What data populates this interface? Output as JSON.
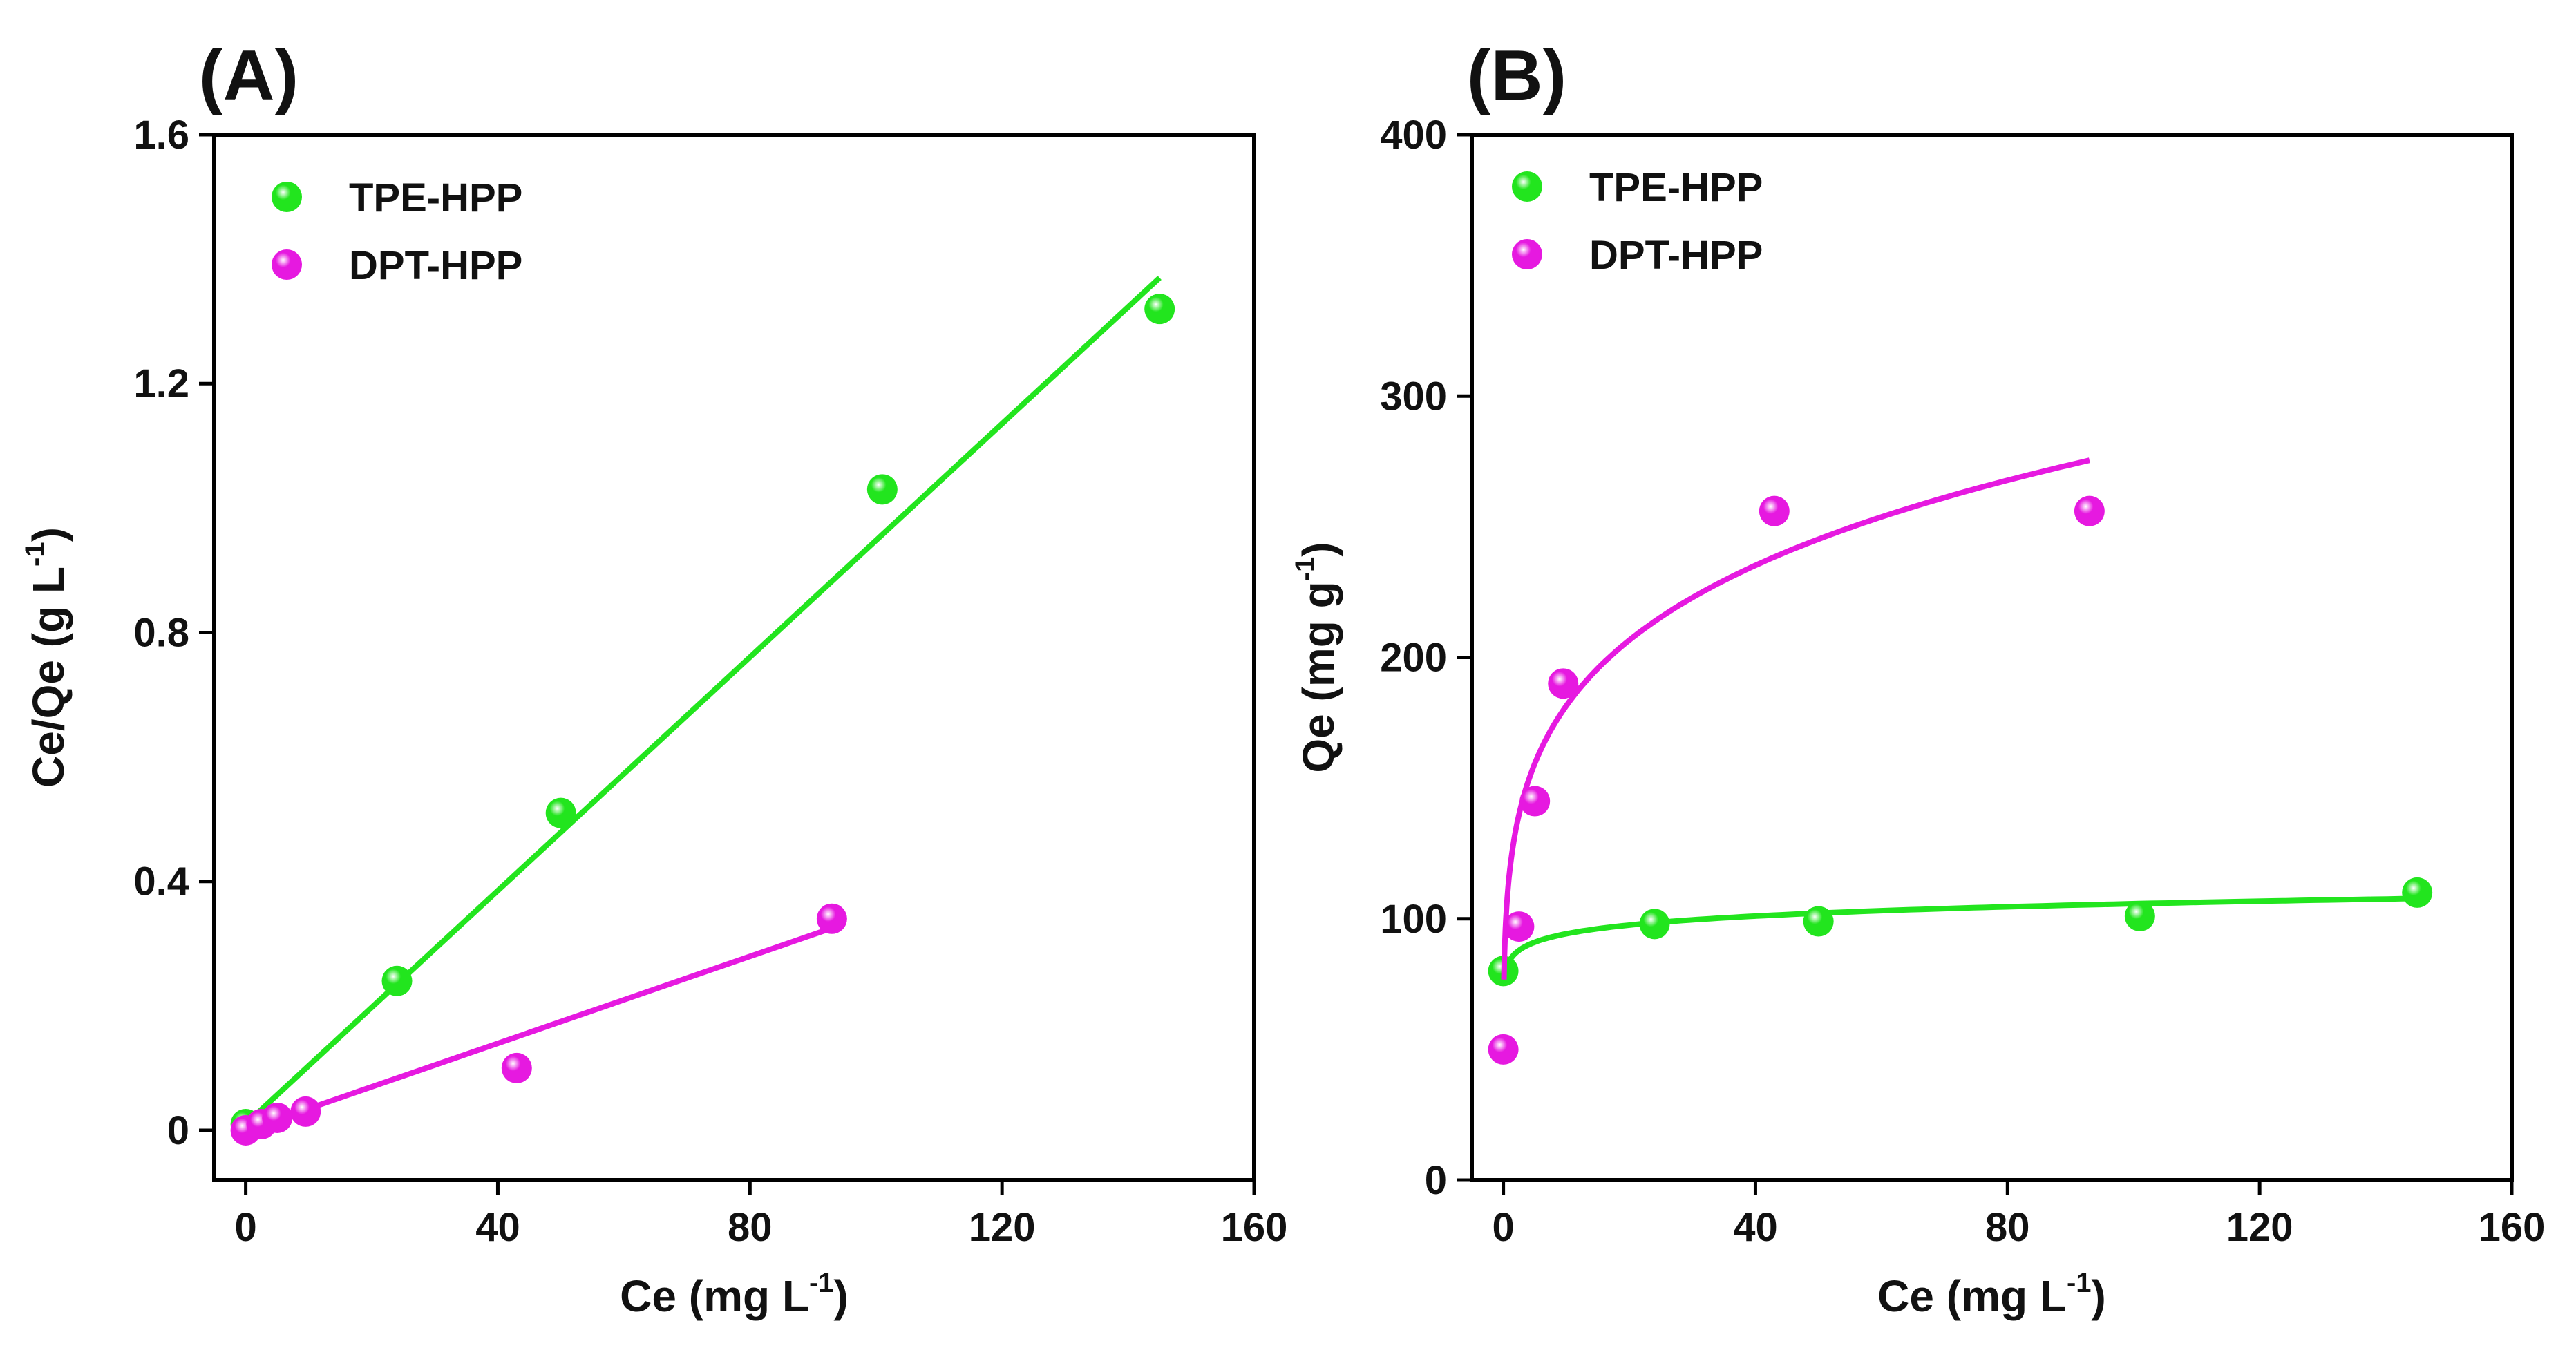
{
  "colors": {
    "tpe": "#22e51e",
    "dpt": "#e619e0",
    "axis": "#000000"
  },
  "chart_data": [
    {
      "type": "scatter",
      "panel_label": "(A)",
      "xlabel": "Ce (mg L",
      "xlabel_sup": "-1",
      "xlabel_close": ")",
      "ylabel": "Ce/Qe (g L",
      "ylabel_sup": "-1",
      "ylabel_close": ")",
      "xlim": [
        -5,
        160
      ],
      "ylim": [
        -0.08,
        1.6
      ],
      "xticks": [
        0,
        40,
        80,
        120,
        160
      ],
      "yticks": [
        0,
        0.4,
        0.8,
        1.2,
        1.6
      ],
      "xtick_labels": [
        "0",
        "40",
        "80",
        "120",
        "160"
      ],
      "ytick_labels": [
        "0",
        "0.4",
        "0.8",
        "1.2",
        "1.6"
      ],
      "grid": false,
      "legend_position": "top-left",
      "series": [
        {
          "name": "TPE-HPP",
          "color_key": "tpe",
          "x": [
            0,
            24,
            50,
            101,
            145
          ],
          "y": [
            0.01,
            0.24,
            0.51,
            1.03,
            1.32
          ],
          "fit": {
            "kind": "linear",
            "x": [
              0,
              145
            ],
            "y": [
              0.01,
              1.37
            ]
          }
        },
        {
          "name": "DPT-HPP",
          "color_key": "dpt",
          "x": [
            0,
            2.5,
            5,
            9.5,
            43,
            93
          ],
          "y": [
            0.0,
            0.01,
            0.02,
            0.03,
            0.1,
            0.34
          ],
          "fit": {
            "kind": "linear",
            "x": [
              0,
              93
            ],
            "y": [
              0.0,
              0.325
            ]
          }
        }
      ]
    },
    {
      "type": "scatter",
      "panel_label": "(B)",
      "xlabel": "Ce (mg L",
      "xlabel_sup": "-1",
      "xlabel_close": ")",
      "ylabel": "Qe (mg g",
      "ylabel_sup": "-1",
      "ylabel_close": ")",
      "xlim": [
        -5,
        160
      ],
      "ylim": [
        0,
        400
      ],
      "xticks": [
        0,
        40,
        80,
        120,
        160
      ],
      "yticks": [
        0,
        100,
        200,
        300,
        400
      ],
      "xtick_labels": [
        "0",
        "40",
        "80",
        "120",
        "160"
      ],
      "ytick_labels": [
        "0",
        "100",
        "200",
        "300",
        "400"
      ],
      "grid": false,
      "legend_position": "top-left",
      "series": [
        {
          "name": "TPE-HPP",
          "color_key": "tpe",
          "x": [
            0,
            24,
            50,
            101,
            145
          ],
          "y": [
            80,
            98,
            99,
            101,
            110
          ],
          "fit": {
            "kind": "freundlich",
            "k": 84,
            "n": 0.05,
            "x_start": 0.3,
            "x_end": 145
          }
        },
        {
          "name": "DPT-HPP",
          "color_key": "dpt",
          "x": [
            0,
            2.5,
            5,
            9.5,
            43,
            93
          ],
          "y": [
            50,
            97,
            145,
            190,
            256,
            256
          ],
          "fit": {
            "kind": "freundlich",
            "k": 118,
            "n": 0.187,
            "x_start": 0.1,
            "x_end": 93
          }
        }
      ]
    }
  ]
}
